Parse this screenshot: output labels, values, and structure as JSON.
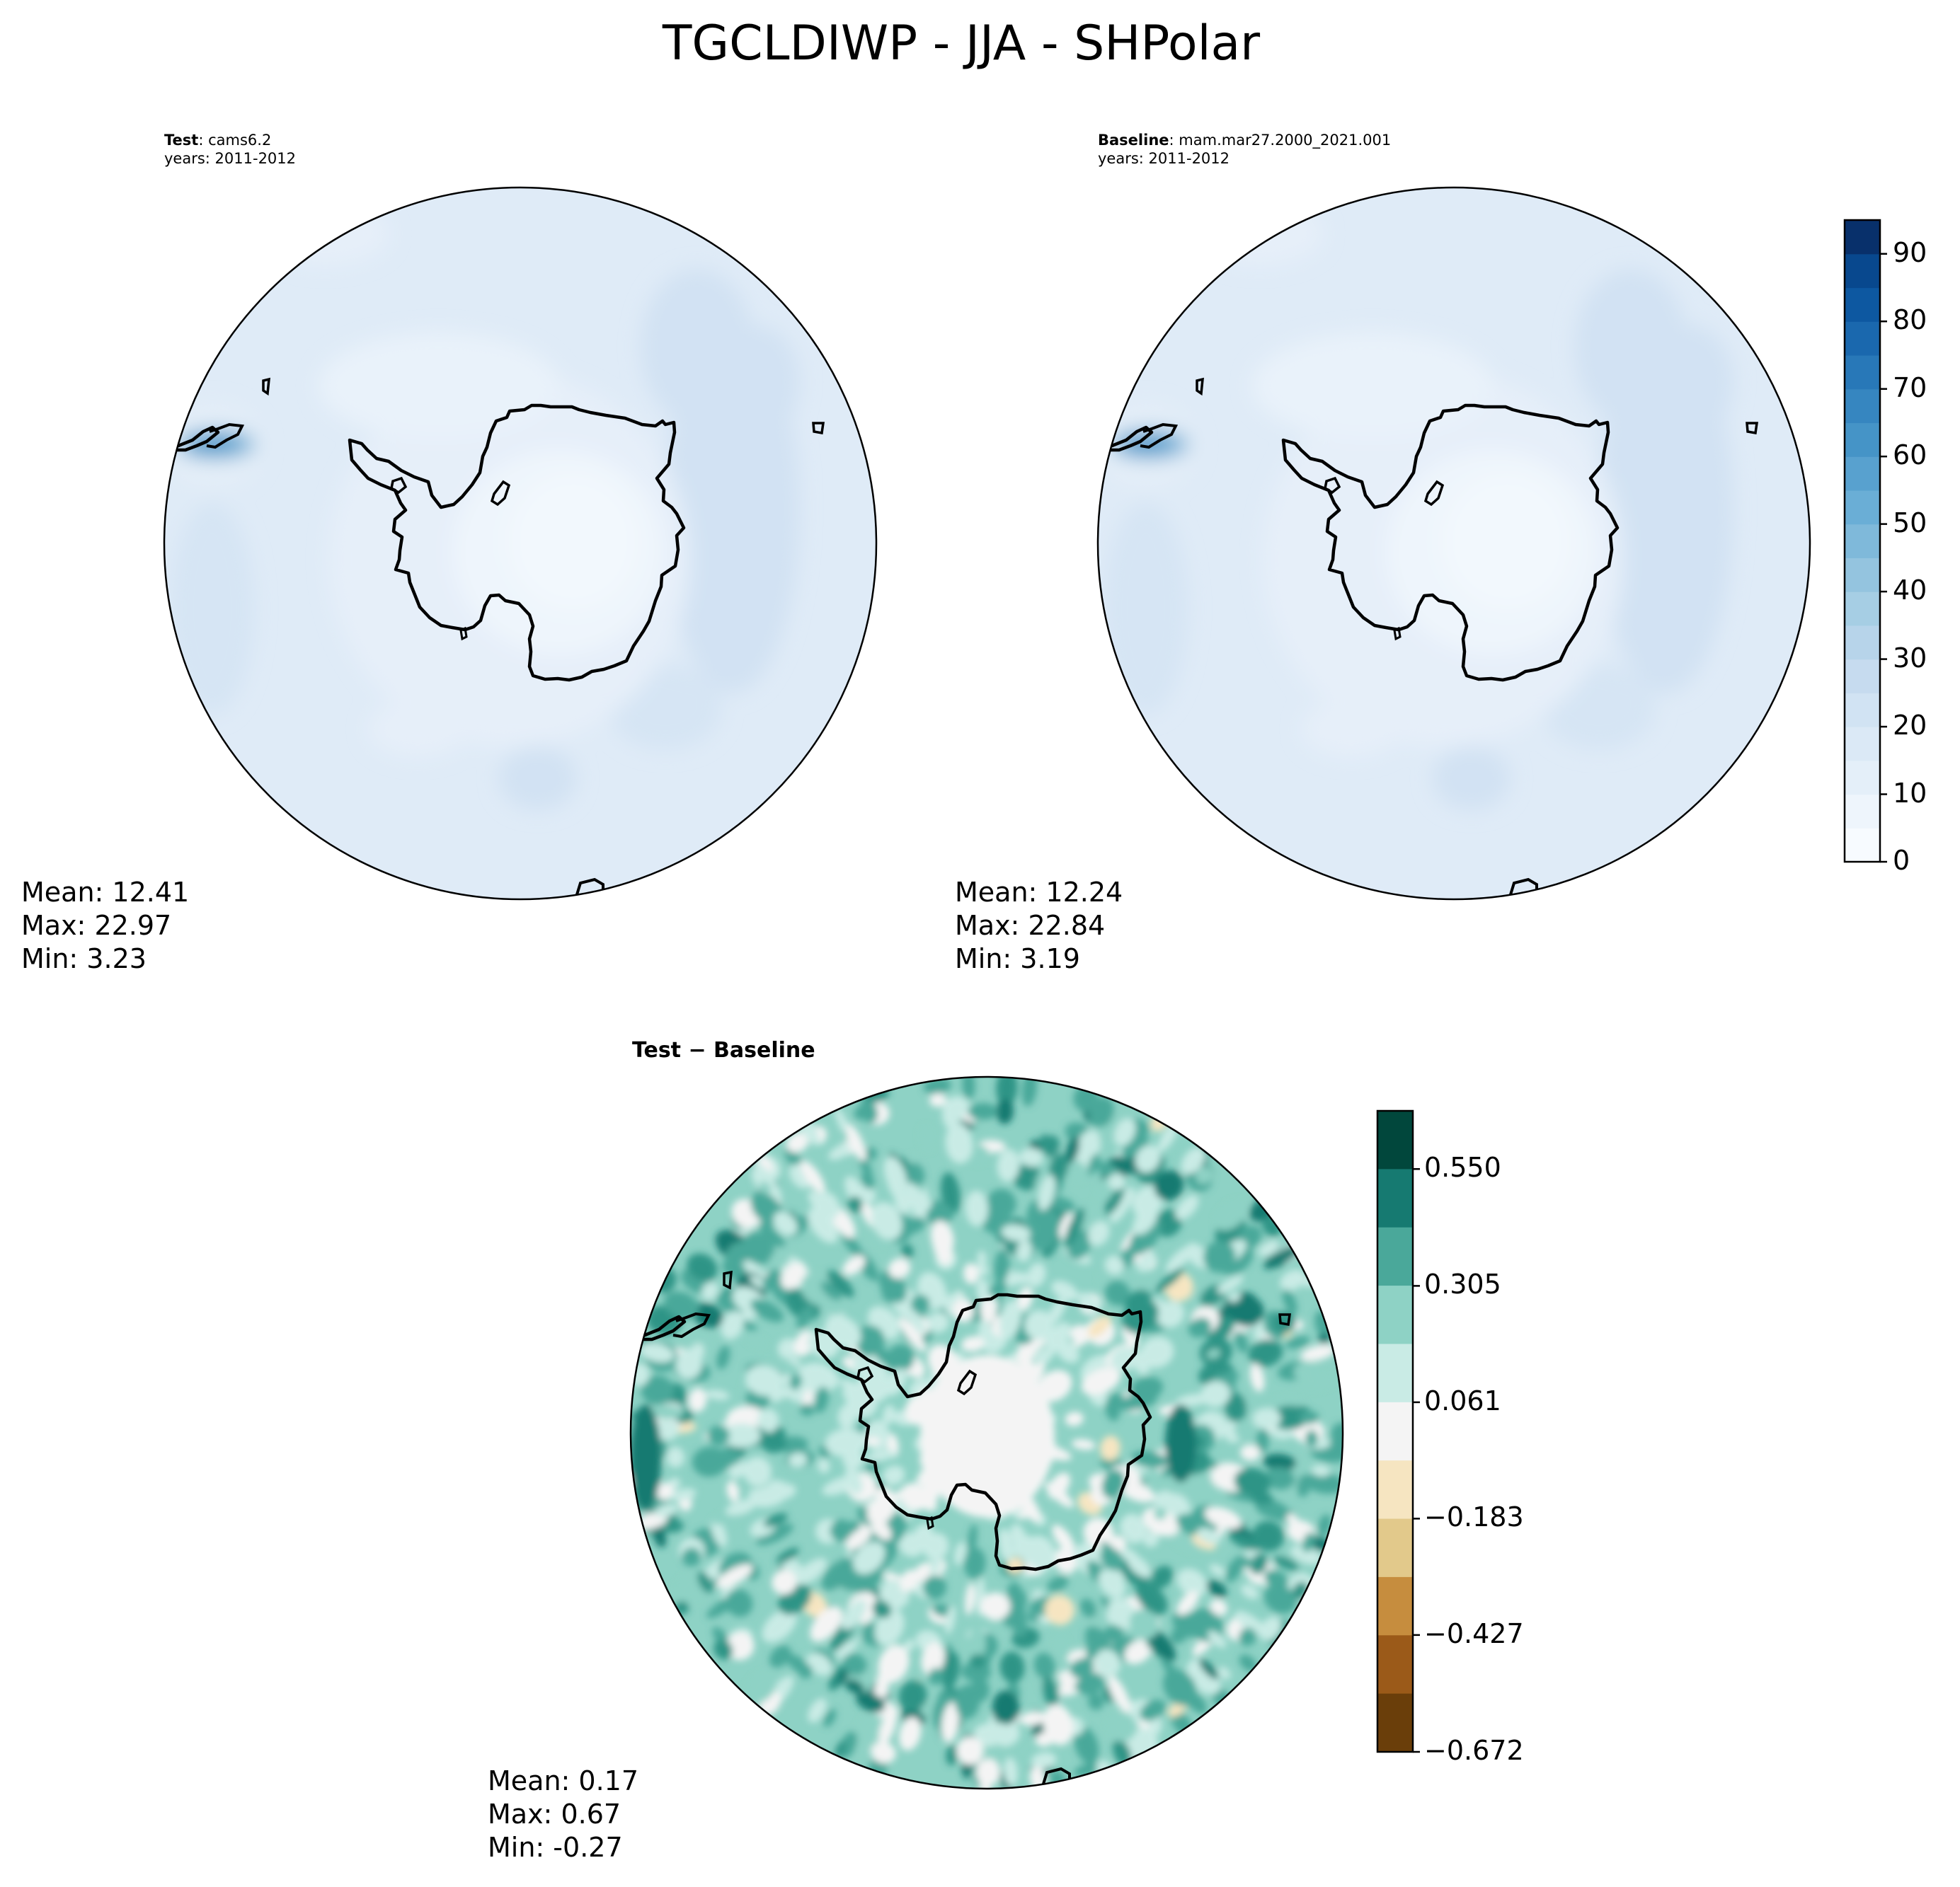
{
  "figure": {
    "title": "TGCLDIWP - JJA - SHPolar"
  },
  "panels": {
    "test": {
      "label_bold": "Test",
      "label_sep": ": ",
      "case": "cams6.2",
      "years": "years: 2011-2012",
      "stats": {
        "mean": "Mean: 12.41",
        "max": "Max: 22.97",
        "min": "Min:  3.23"
      }
    },
    "baseline": {
      "label_bold": "Baseline",
      "label_sep": ": ",
      "case": "mam.mar27.2000_2021.001",
      "years": "years: 2011-2012",
      "stats": {
        "mean": "Mean: 12.24",
        "max": "Max: 22.84",
        "min": "Min:  3.19"
      }
    },
    "diff": {
      "title": "Test − Baseline",
      "stats": {
        "mean": "Mean:  0.17",
        "max": "Max:  0.67",
        "min": "Min: -0.27"
      }
    }
  },
  "chart_data": [
    {
      "type": "heatmap",
      "panel": "Test",
      "projection": "south-polar-stereographic",
      "colormap": "Blues",
      "dominant_value_range": [
        5,
        20
      ],
      "mean": 12.41,
      "max": 22.97,
      "min": 3.23
    },
    {
      "type": "heatmap",
      "panel": "Baseline",
      "projection": "south-polar-stereographic",
      "colormap": "Blues",
      "dominant_value_range": [
        5,
        20
      ],
      "mean": 12.24,
      "max": 22.84,
      "min": 3.19
    },
    {
      "type": "heatmap",
      "panel": "Test − Baseline",
      "projection": "south-polar-stereographic",
      "colormap": "BrBG",
      "mean": 0.17,
      "max": 0.67,
      "min": -0.27
    }
  ],
  "colorbars": {
    "main": {
      "ticks": [
        "0",
        "10",
        "20",
        "30",
        "40",
        "50",
        "60",
        "70",
        "80",
        "90"
      ],
      "tick_values": [
        0,
        10,
        20,
        30,
        40,
        50,
        60,
        70,
        80,
        90
      ],
      "range": [
        0,
        95
      ],
      "levels": 19,
      "colors": [
        "#f7fbff",
        "#eef5fc",
        "#e4eff9",
        "#dbe9f6",
        "#d1e3f3",
        "#c6dbef",
        "#b7d4ea",
        "#a6cee4",
        "#94c4df",
        "#7fb9da",
        "#6aaed6",
        "#58a1cf",
        "#4594c7",
        "#3686c0",
        "#2878b8",
        "#1a68ae",
        "#0d58a1",
        "#08488e",
        "#08306b"
      ]
    },
    "diff": {
      "ticks": [
        "0.550",
        "0.305",
        "0.061",
        "−0.183",
        "−0.427",
        "−0.672"
      ],
      "tick_values": [
        0.55,
        0.305,
        0.061,
        -0.183,
        -0.427,
        -0.672
      ],
      "range": [
        -0.672,
        0.672
      ],
      "colors": [
        "#01473c",
        "#167a71",
        "#4aa89a",
        "#8ed2c5",
        "#c9ebe5",
        "#f4f4f4",
        "#f6e5c1",
        "#e2c98b",
        "#c68d3e",
        "#9b5a19",
        "#6a3e0a"
      ]
    }
  }
}
